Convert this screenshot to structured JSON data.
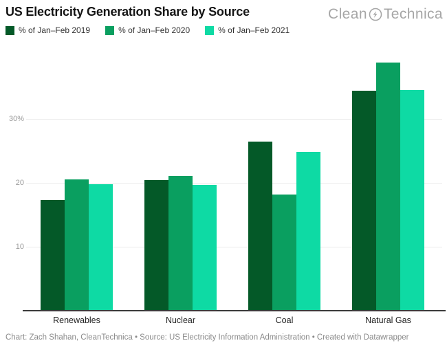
{
  "header": {
    "title": "US Electricity Generation Share by Source",
    "logo_part1": "Clean",
    "logo_part2": "Technica"
  },
  "chart_data": {
    "type": "bar",
    "title": "US Electricity Generation Share by Source",
    "categories": [
      "Renewables",
      "Nuclear",
      "Coal",
      "Natural Gas"
    ],
    "series": [
      {
        "name": "% of Jan–Feb 2019",
        "color": "#045928",
        "values": [
          17.3,
          20.4,
          26.5,
          34.4
        ]
      },
      {
        "name": "% of Jan–Feb 2020",
        "color": "#0a9f60",
        "values": [
          20.5,
          21.1,
          18.2,
          38.8
        ]
      },
      {
        "name": "% of Jan–Feb 2021",
        "color": "#0edaa4",
        "values": [
          19.8,
          19.7,
          24.8,
          34.5
        ]
      }
    ],
    "xlabel": "",
    "ylabel": "",
    "ylim": [
      0,
      42
    ],
    "yticks": [
      {
        "value": 10,
        "label": "10"
      },
      {
        "value": 20,
        "label": "20"
      },
      {
        "value": 30,
        "label": "30%"
      }
    ],
    "grid": true,
    "legend_position": "top"
  },
  "footer": {
    "text": "Chart: Zach Shahan, CleanTechnica • Source: US Electricity Information Administration • Created with Datawrapper"
  }
}
